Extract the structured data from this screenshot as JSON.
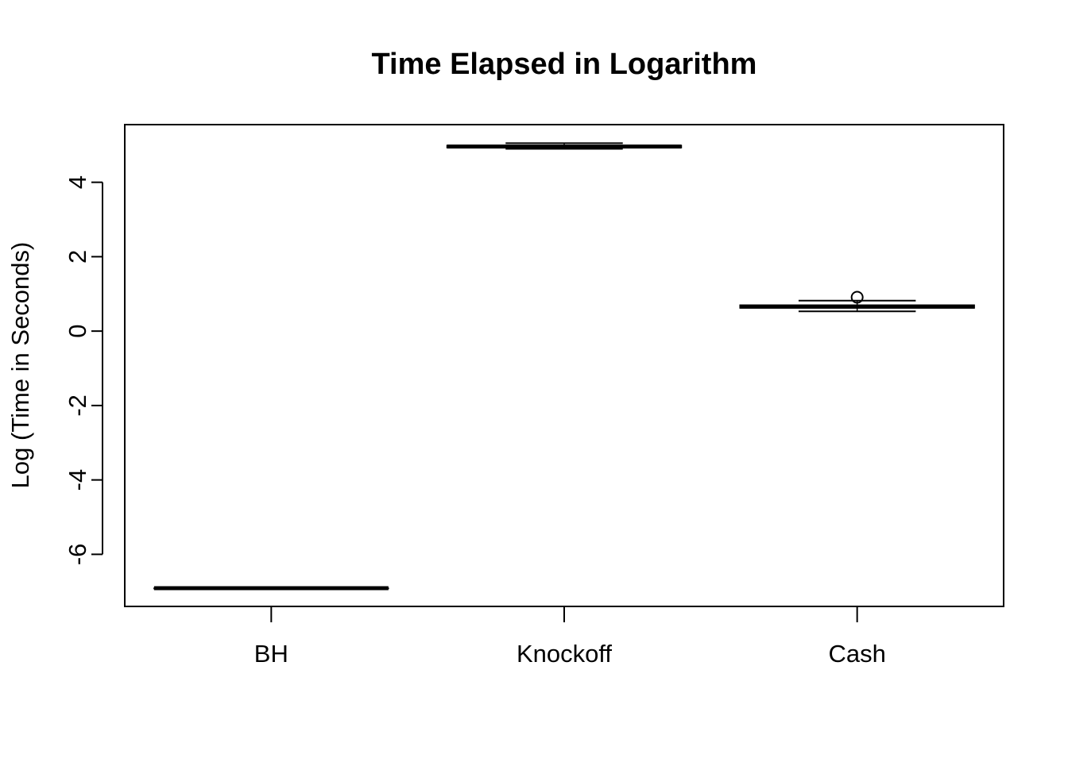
{
  "chart_data": {
    "type": "boxplot",
    "title": "Time Elapsed in Logarithm",
    "xlabel": "",
    "ylabel": "Log (Time in Seconds)",
    "categories": [
      "BH",
      "Knockoff",
      "Cash"
    ],
    "ylim": [
      -7.4,
      5.55
    ],
    "y_ticks": [
      "4",
      "2",
      "0",
      "-2",
      "-4",
      "-6"
    ],
    "y_tick_values": [
      4,
      2,
      0,
      -2,
      -4,
      -6
    ],
    "boxes": [
      {
        "category": "BH",
        "min": -6.91,
        "q1": -6.91,
        "median": -6.91,
        "q3": -6.91,
        "max": -6.91,
        "outliers": []
      },
      {
        "category": "Knockoff",
        "min": 4.9,
        "q1": 4.93,
        "median": 4.96,
        "q3": 4.99,
        "max": 5.05,
        "outliers": []
      },
      {
        "category": "Cash",
        "min": 0.53,
        "q1": 0.62,
        "median": 0.66,
        "q3": 0.7,
        "max": 0.82,
        "outliers": [
          0.91
        ]
      }
    ],
    "grid": false,
    "legend": "none",
    "colors": {
      "stroke": "#000000",
      "background": "#ffffff"
    }
  }
}
